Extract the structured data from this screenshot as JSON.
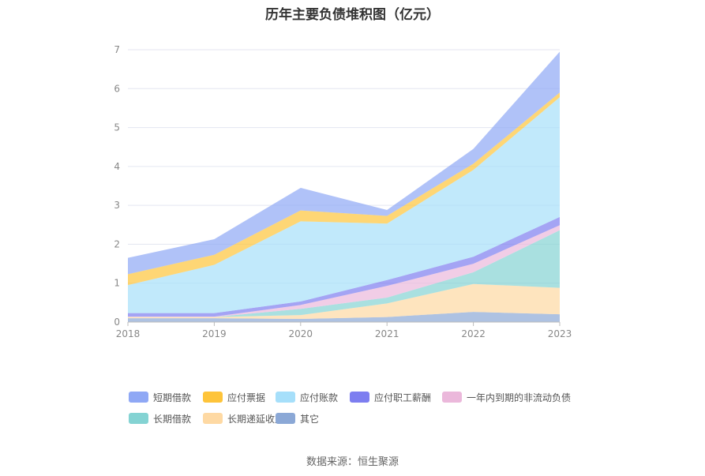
{
  "chart_data": {
    "type": "area",
    "stacked": true,
    "title": "历年主要负债堆积图（亿元）",
    "categories": [
      "2018",
      "2019",
      "2020",
      "2021",
      "2022",
      "2023"
    ],
    "ylim": [
      0,
      7
    ],
    "yticks": [
      0,
      1,
      2,
      3,
      4,
      5,
      6,
      7
    ],
    "grid": true,
    "legend_position": "bottom",
    "series": [
      {
        "name": "短期借款",
        "color": "#8fa8f5",
        "values": [
          0.42,
          0.4,
          0.58,
          0.15,
          0.38,
          1.05
        ]
      },
      {
        "name": "应付票据",
        "color": "#fec43a",
        "values": [
          0.28,
          0.26,
          0.28,
          0.2,
          0.16,
          0.12
        ]
      },
      {
        "name": "应付账款",
        "color": "#a6dffa",
        "values": [
          0.72,
          1.24,
          2.06,
          1.45,
          2.23,
          3.08
        ]
      },
      {
        "name": "应付职工薪酬",
        "color": "#7d7ef0",
        "values": [
          0.09,
          0.09,
          0.09,
          0.15,
          0.18,
          0.21
        ]
      },
      {
        "name": "一年内到期的非流动负债",
        "color": "#ebb8db",
        "values": [
          0.01,
          0.01,
          0.1,
          0.3,
          0.22,
          0.13
        ]
      },
      {
        "name": "长期借款",
        "color": "#84d3d3",
        "values": [
          0.0,
          0.0,
          0.16,
          0.15,
          0.3,
          1.48
        ]
      },
      {
        "name": "长期递延收益",
        "color": "#fed9a3",
        "values": [
          0.03,
          0.03,
          0.1,
          0.35,
          0.72,
          0.68
        ]
      },
      {
        "name": "其它",
        "color": "#8ba8d6",
        "values": [
          0.1,
          0.1,
          0.08,
          0.13,
          0.26,
          0.2
        ]
      }
    ]
  },
  "source": "数据来源：恒生聚源"
}
